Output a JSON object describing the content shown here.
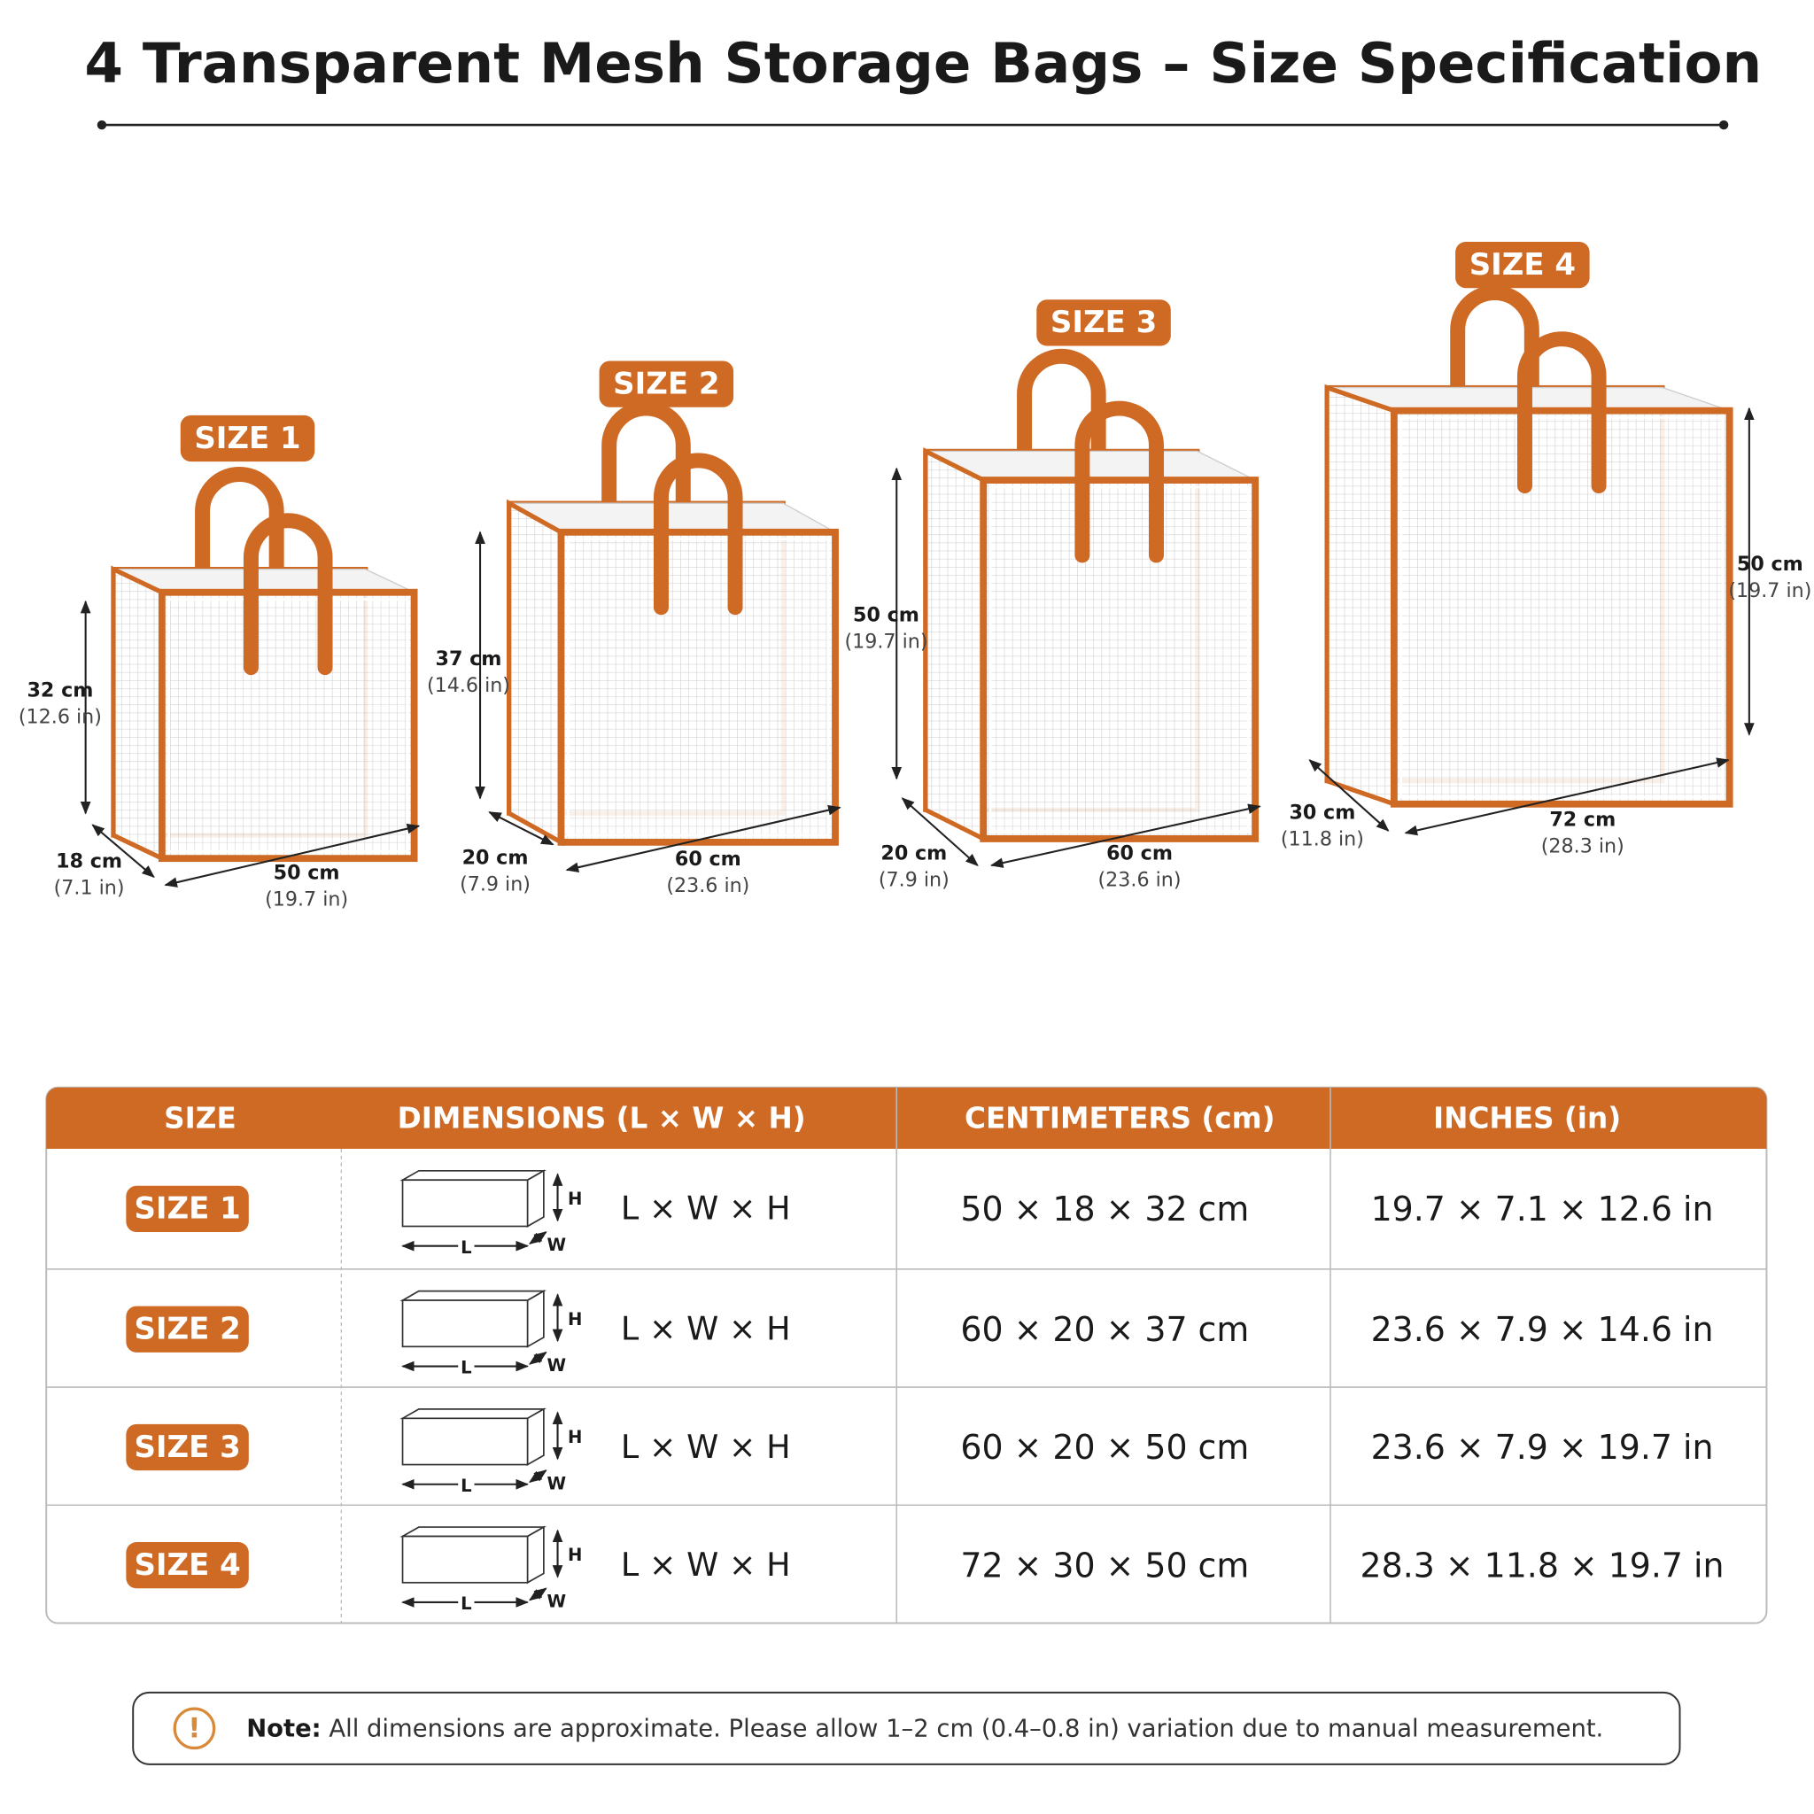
{
  "title": "4 Transparent Mesh Storage Bags – Size Specification",
  "bags": [
    {
      "label": "SIZE 1",
      "height": {
        "cm": "32 cm",
        "in": "(12.6 in)"
      },
      "width": {
        "cm": "18 cm",
        "in": "(7.1 in)"
      },
      "length": {
        "cm": "50 cm",
        "in": "(19.7 in)"
      }
    },
    {
      "label": "SIZE 2",
      "height": {
        "cm": "37 cm",
        "in": "(14.6 in)"
      },
      "width": {
        "cm": "20 cm",
        "in": "(7.9 in)"
      },
      "length": {
        "cm": "60 cm",
        "in": "(23.6 in)"
      }
    },
    {
      "label": "SIZE 3",
      "height": {
        "cm": "50 cm",
        "in": "(19.7 in)"
      },
      "width": {
        "cm": "20 cm",
        "in": "(7.9 in)"
      },
      "length": {
        "cm": "60 cm",
        "in": "(23.6 in)"
      }
    },
    {
      "label": "SIZE 4",
      "height": {
        "cm": "50 cm",
        "in": "(19.7 in)"
      },
      "width": {
        "cm": "30 cm",
        "in": "(11.8 in)"
      },
      "length": {
        "cm": "72 cm",
        "in": "(28.3 in)"
      }
    }
  ],
  "table": {
    "headers": [
      "SIZE",
      "DIMENSIONS (L × W × H)",
      "CENTIMETERS (cm)",
      "INCHES (in)"
    ],
    "icon_labels": {
      "h": "H",
      "l": "L",
      "w": "W"
    },
    "rows": [
      [
        "SIZE 1",
        "L × W × H",
        "50 × 18 × 32 cm",
        "19.7 × 7.1 × 12.6 in"
      ],
      [
        "SIZE 2",
        "L × W × H",
        "60 × 20 × 37 cm",
        "23.6 × 7.9 × 14.6 in"
      ],
      [
        "SIZE 3",
        "L × W × H",
        "60 × 20 × 50 cm",
        "23.6 × 7.9 × 19.7 in"
      ],
      [
        "SIZE 4",
        "L × W × H",
        "72 × 30 × 50 cm",
        "28.3 × 11.8 × 19.7 in"
      ]
    ]
  },
  "note": {
    "icon": "!",
    "label": "Note:",
    "text": " All dimensions are approximate. Please allow 1–2 cm (0.4–0.8 in) variation due to manual measurement."
  }
}
